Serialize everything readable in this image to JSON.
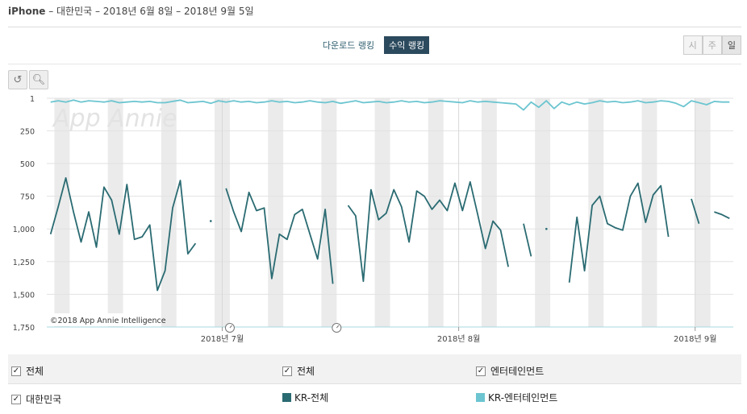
{
  "header": {
    "device": "iPhone",
    "title_rest": " – 대한민국 – 2018년 6월 8일 – 2018년 9월 5일"
  },
  "tabs": [
    {
      "label": "다운로드 랭킹",
      "active": false
    },
    {
      "label": "수익 랭킹",
      "active": true
    }
  ],
  "granularity": [
    {
      "label": "시",
      "active": false
    },
    {
      "label": "주",
      "active": false
    },
    {
      "label": "일",
      "active": true
    }
  ],
  "toolbar": {
    "reset_icon": "undo-icon",
    "zoom_icon": "zoom-in-icon"
  },
  "watermark": "App Annie",
  "copyright": "©2018 App Annie Intelligence",
  "legend": {
    "country_filter": "대한민국",
    "col1_header": "전체",
    "col2_header": "전체",
    "col3_header": "엔터테인먼트",
    "series1_label": "KR-전체",
    "series2_label": "KR-엔터테인먼트"
  },
  "colors": {
    "series_overall": "#2a6b72",
    "series_entertainment": "#6cc5d0",
    "tab_active_bg": "#2c4a5e",
    "weekend_band": "#ebebeb"
  },
  "chart_data": {
    "type": "line",
    "y_axis": {
      "inverted": true,
      "range": [
        1,
        1750
      ],
      "ticks": [
        "1",
        "250",
        "500",
        "750",
        "1,000",
        "1,250",
        "1,500",
        "1,750"
      ]
    },
    "x_axis": {
      "start_date": "2018-06-08",
      "end_date": "2018-09-05",
      "ticks": [
        {
          "date": "2018-07-01",
          "label": "2018년 7월"
        },
        {
          "date": "2018-08-01",
          "label": "2018년 8월"
        },
        {
          "date": "2018-09-01",
          "label": "2018년 9월"
        }
      ]
    },
    "weekend_bands": [
      "2018-06-09",
      "2018-06-16",
      "2018-06-23",
      "2018-06-30",
      "2018-07-07",
      "2018-07-14",
      "2018-07-21",
      "2018-07-28",
      "2018-08-04",
      "2018-08-11",
      "2018-08-18",
      "2018-08-25",
      "2018-09-01"
    ],
    "event_markers": [
      "2018-07-02",
      "2018-07-16"
    ],
    "series": [
      {
        "name": "KR-전체",
        "values": [
          1040,
          830,
          610,
          870,
          1100,
          870,
          1140,
          680,
          780,
          1040,
          660,
          1080,
          1060,
          970,
          1470,
          1320,
          840,
          630,
          1190,
          1110,
          null,
          940,
          null,
          690,
          870,
          1020,
          720,
          860,
          840,
          1380,
          1040,
          1080,
          890,
          850,
          1040,
          1230,
          850,
          1420,
          null,
          820,
          900,
          1400,
          700,
          930,
          880,
          700,
          830,
          1100,
          710,
          750,
          850,
          780,
          860,
          650,
          860,
          640,
          890,
          1150,
          940,
          1010,
          1290,
          null,
          960,
          1210,
          null,
          1000,
          null,
          null,
          1410,
          910,
          1320,
          820,
          750,
          960,
          990,
          1010,
          750,
          650,
          950,
          740,
          670,
          1060,
          null,
          null,
          770,
          960,
          null,
          870,
          890,
          920
        ],
        "end_gap_note": ""
      },
      {
        "name": "KR-엔터테인먼트",
        "values": [
          30,
          20,
          30,
          15,
          30,
          20,
          25,
          30,
          20,
          35,
          30,
          25,
          30,
          25,
          35,
          35,
          25,
          15,
          35,
          30,
          25,
          40,
          20,
          30,
          20,
          30,
          25,
          35,
          30,
          20,
          30,
          25,
          35,
          30,
          20,
          30,
          35,
          25,
          40,
          30,
          20,
          35,
          30,
          25,
          35,
          30,
          20,
          30,
          25,
          35,
          30,
          20,
          25,
          30,
          35,
          20,
          30,
          25,
          30,
          35,
          40,
          45,
          90,
          30,
          70,
          20,
          80,
          30,
          50,
          30,
          45,
          35,
          20,
          30,
          25,
          35,
          30,
          20,
          35,
          30,
          20,
          25,
          40,
          65,
          20,
          35,
          50,
          25,
          30,
          30
        ]
      }
    ]
  }
}
